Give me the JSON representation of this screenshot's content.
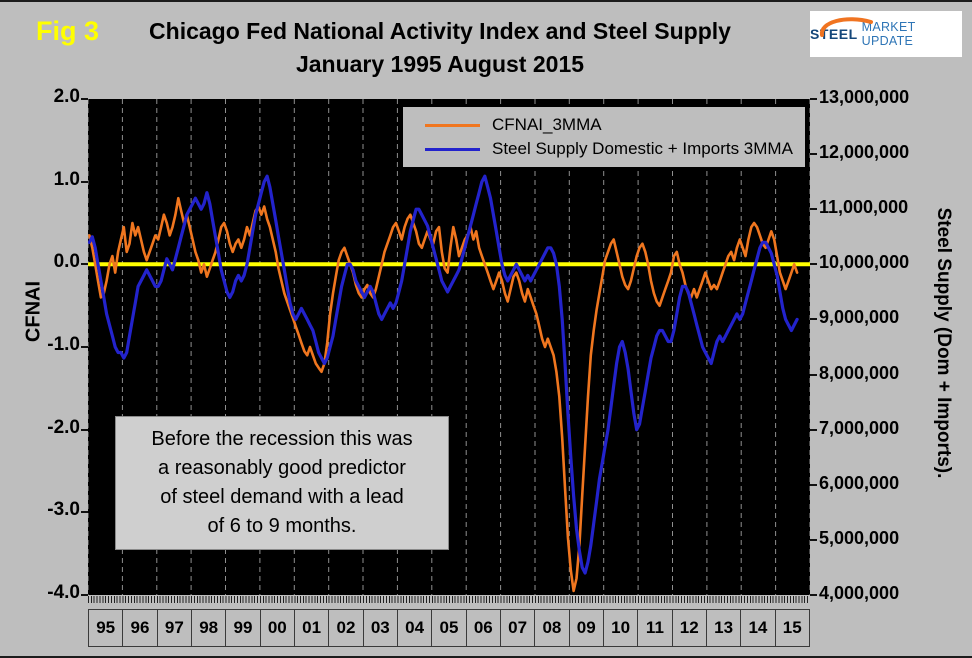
{
  "fig_label": "Fig 3",
  "title": {
    "line1": "Chicago Fed National Activity Index and Steel Supply",
    "line2": "January 1995 August 2015"
  },
  "logo": {
    "steel": "STEEL",
    "market_update": "MARKET UPDATE",
    "swoosh_color": "#F07421"
  },
  "annotation": {
    "text": "Before the recession this was\na reasonably good predictor\nof steel demand with a lead\nof 6 to 9 months."
  },
  "chart_data": {
    "type": "line",
    "title": "Chicago Fed National Activity Index and Steel Supply January 1995 August 2015",
    "x_unit": "month",
    "x_start": "1995-01",
    "x_end": "2015-08",
    "x_tick_labels": [
      "95",
      "96",
      "97",
      "98",
      "99",
      "00",
      "01",
      "02",
      "03",
      "04",
      "05",
      "06",
      "07",
      "08",
      "09",
      "10",
      "11",
      "12",
      "13",
      "14",
      "15"
    ],
    "left_axis": {
      "label": "CFNAI",
      "min": -4,
      "max": 2,
      "tick_labels": [
        "2.0",
        "1.0",
        "0.0",
        "-1.0",
        "-2.0",
        "-3.0",
        "-4.0"
      ]
    },
    "right_axis": {
      "label": "Steel Supply (Dom + Imports).",
      "min": 4000000,
      "max": 13000000,
      "tick_labels": [
        "13,000,000",
        "12,000,000",
        "11,000,000",
        "10,000,000",
        "9,000,000",
        "8,000,000",
        "7,000,000",
        "6,000,000",
        "5,000,000",
        "4,000,000"
      ]
    },
    "reference_line": {
      "axis": "left",
      "value": 0,
      "color": "#FFFF00"
    },
    "legend_position": "top-right",
    "grid": "vertical-dashed",
    "plot_background": "#000000",
    "series": [
      {
        "name": "CFNAI_3MMA",
        "axis": "left",
        "color": "#F0761F",
        "values": [
          0.35,
          0.2,
          0.0,
          -0.2,
          -0.4,
          -0.35,
          -0.2,
          0.0,
          0.1,
          -0.1,
          0.15,
          0.3,
          0.45,
          0.15,
          0.25,
          0.5,
          0.35,
          0.45,
          0.3,
          0.15,
          0.05,
          0.15,
          0.25,
          0.35,
          0.3,
          0.45,
          0.6,
          0.5,
          0.35,
          0.45,
          0.6,
          0.8,
          0.65,
          0.5,
          0.6,
          0.45,
          0.3,
          0.15,
          0.05,
          -0.1,
          0.0,
          -0.15,
          -0.05,
          0.05,
          0.15,
          0.3,
          0.45,
          0.5,
          0.4,
          0.25,
          0.15,
          0.25,
          0.3,
          0.2,
          0.3,
          0.45,
          0.35,
          0.5,
          0.65,
          0.7,
          0.6,
          0.7,
          0.55,
          0.45,
          0.3,
          0.15,
          -0.05,
          -0.2,
          -0.35,
          -0.45,
          -0.55,
          -0.65,
          -0.75,
          -0.85,
          -0.95,
          -1.05,
          -1.1,
          -1.0,
          -1.1,
          -1.2,
          -1.25,
          -1.3,
          -1.2,
          -0.95,
          -0.6,
          -0.35,
          -0.15,
          0.05,
          0.15,
          0.2,
          0.1,
          0.0,
          -0.1,
          -0.25,
          -0.35,
          -0.4,
          -0.3,
          -0.25,
          -0.35,
          -0.4,
          -0.3,
          -0.15,
          0.0,
          0.15,
          0.25,
          0.35,
          0.45,
          0.5,
          0.4,
          0.3,
          0.45,
          0.55,
          0.6,
          0.5,
          0.4,
          0.25,
          0.2,
          0.3,
          0.4,
          0.3,
          0.25,
          0.4,
          0.45,
          0.15,
          -0.05,
          -0.1,
          0.2,
          0.45,
          0.3,
          0.1,
          0.2,
          0.3,
          0.35,
          0.45,
          0.3,
          0.4,
          0.2,
          0.1,
          0.0,
          -0.1,
          -0.2,
          -0.3,
          -0.2,
          -0.1,
          -0.2,
          -0.35,
          -0.45,
          -0.3,
          -0.15,
          -0.1,
          -0.2,
          -0.35,
          -0.45,
          -0.3,
          -0.4,
          -0.5,
          -0.6,
          -0.75,
          -0.9,
          -1.0,
          -0.9,
          -1.0,
          -1.1,
          -1.3,
          -1.6,
          -2.1,
          -2.7,
          -3.3,
          -3.7,
          -3.95,
          -3.8,
          -3.4,
          -2.8,
          -2.2,
          -1.6,
          -1.1,
          -0.8,
          -0.55,
          -0.35,
          -0.15,
          0.05,
          0.15,
          0.25,
          0.3,
          0.15,
          0.0,
          -0.15,
          -0.25,
          -0.3,
          -0.2,
          -0.05,
          0.1,
          0.2,
          0.25,
          0.15,
          0.0,
          -0.2,
          -0.35,
          -0.45,
          -0.5,
          -0.4,
          -0.3,
          -0.2,
          -0.1,
          0.1,
          0.15,
          0.0,
          -0.1,
          -0.25,
          -0.35,
          -0.4,
          -0.3,
          -0.4,
          -0.3,
          -0.2,
          -0.1,
          -0.2,
          -0.3,
          -0.25,
          -0.3,
          -0.2,
          -0.1,
          0.0,
          0.1,
          0.15,
          0.05,
          0.2,
          0.3,
          0.2,
          0.1,
          0.3,
          0.45,
          0.5,
          0.45,
          0.35,
          0.25,
          0.2,
          0.3,
          0.4,
          0.3,
          0.1,
          -0.1,
          -0.2,
          -0.3,
          -0.2,
          -0.1,
          0.0,
          -0.1
        ]
      },
      {
        "name": "Steel Supply Domestic + Imports 3MMA",
        "axis": "right",
        "color": "#2323CC",
        "units": "millions",
        "values": [
          10.4,
          10.5,
          10.3,
          10.0,
          9.7,
          9.4,
          9.1,
          8.9,
          8.7,
          8.5,
          8.4,
          8.4,
          8.3,
          8.4,
          8.7,
          9.0,
          9.3,
          9.6,
          9.7,
          9.8,
          9.9,
          9.8,
          9.7,
          9.6,
          9.6,
          9.7,
          9.9,
          10.1,
          10.0,
          9.9,
          10.1,
          10.3,
          10.5,
          10.7,
          10.9,
          11.0,
          11.1,
          11.2,
          11.1,
          11.0,
          11.1,
          11.3,
          11.1,
          10.8,
          10.5,
          10.2,
          9.9,
          9.7,
          9.5,
          9.4,
          9.5,
          9.7,
          9.8,
          9.7,
          9.8,
          10.0,
          10.3,
          10.6,
          10.9,
          11.1,
          11.3,
          11.5,
          11.6,
          11.4,
          11.1,
          10.8,
          10.5,
          10.2,
          9.9,
          9.6,
          9.3,
          9.1,
          9.0,
          9.1,
          9.2,
          9.1,
          9.0,
          8.9,
          8.8,
          8.6,
          8.4,
          8.3,
          8.2,
          8.3,
          8.5,
          8.7,
          9.0,
          9.3,
          9.6,
          9.8,
          10.0,
          10.0,
          9.9,
          9.7,
          9.6,
          9.5,
          9.4,
          9.5,
          9.6,
          9.5,
          9.3,
          9.1,
          9.0,
          9.1,
          9.2,
          9.3,
          9.2,
          9.3,
          9.5,
          9.7,
          10.0,
          10.3,
          10.6,
          10.8,
          11.0,
          11.0,
          10.9,
          10.8,
          10.7,
          10.5,
          10.3,
          10.1,
          9.9,
          9.7,
          9.6,
          9.5,
          9.6,
          9.7,
          9.8,
          9.9,
          10.1,
          10.3,
          10.5,
          10.7,
          10.9,
          11.1,
          11.3,
          11.5,
          11.6,
          11.4,
          11.2,
          10.9,
          10.6,
          10.3,
          10.0,
          9.8,
          9.7,
          9.8,
          9.9,
          10.0,
          9.9,
          9.8,
          9.7,
          9.8,
          9.7,
          9.8,
          9.9,
          10.0,
          10.1,
          10.2,
          10.3,
          10.3,
          10.2,
          10.0,
          9.6,
          9.0,
          8.2,
          7.3,
          6.5,
          5.8,
          5.2,
          4.8,
          4.5,
          4.4,
          4.6,
          4.9,
          5.3,
          5.7,
          6.1,
          6.4,
          6.7,
          7.0,
          7.4,
          7.8,
          8.2,
          8.5,
          8.6,
          8.4,
          8.1,
          7.7,
          7.3,
          7.0,
          7.1,
          7.4,
          7.7,
          8.0,
          8.3,
          8.5,
          8.7,
          8.8,
          8.8,
          8.7,
          8.6,
          8.6,
          8.8,
          9.1,
          9.4,
          9.6,
          9.6,
          9.5,
          9.3,
          9.1,
          8.9,
          8.7,
          8.5,
          8.4,
          8.3,
          8.2,
          8.4,
          8.6,
          8.7,
          8.6,
          8.7,
          8.8,
          8.9,
          9.0,
          9.1,
          9.0,
          9.1,
          9.3,
          9.5,
          9.7,
          9.9,
          10.1,
          10.3,
          10.4,
          10.4,
          10.3,
          10.2,
          10.0,
          9.8,
          9.5,
          9.2,
          9.0,
          8.9,
          8.8,
          8.9,
          9.0
        ]
      }
    ]
  }
}
